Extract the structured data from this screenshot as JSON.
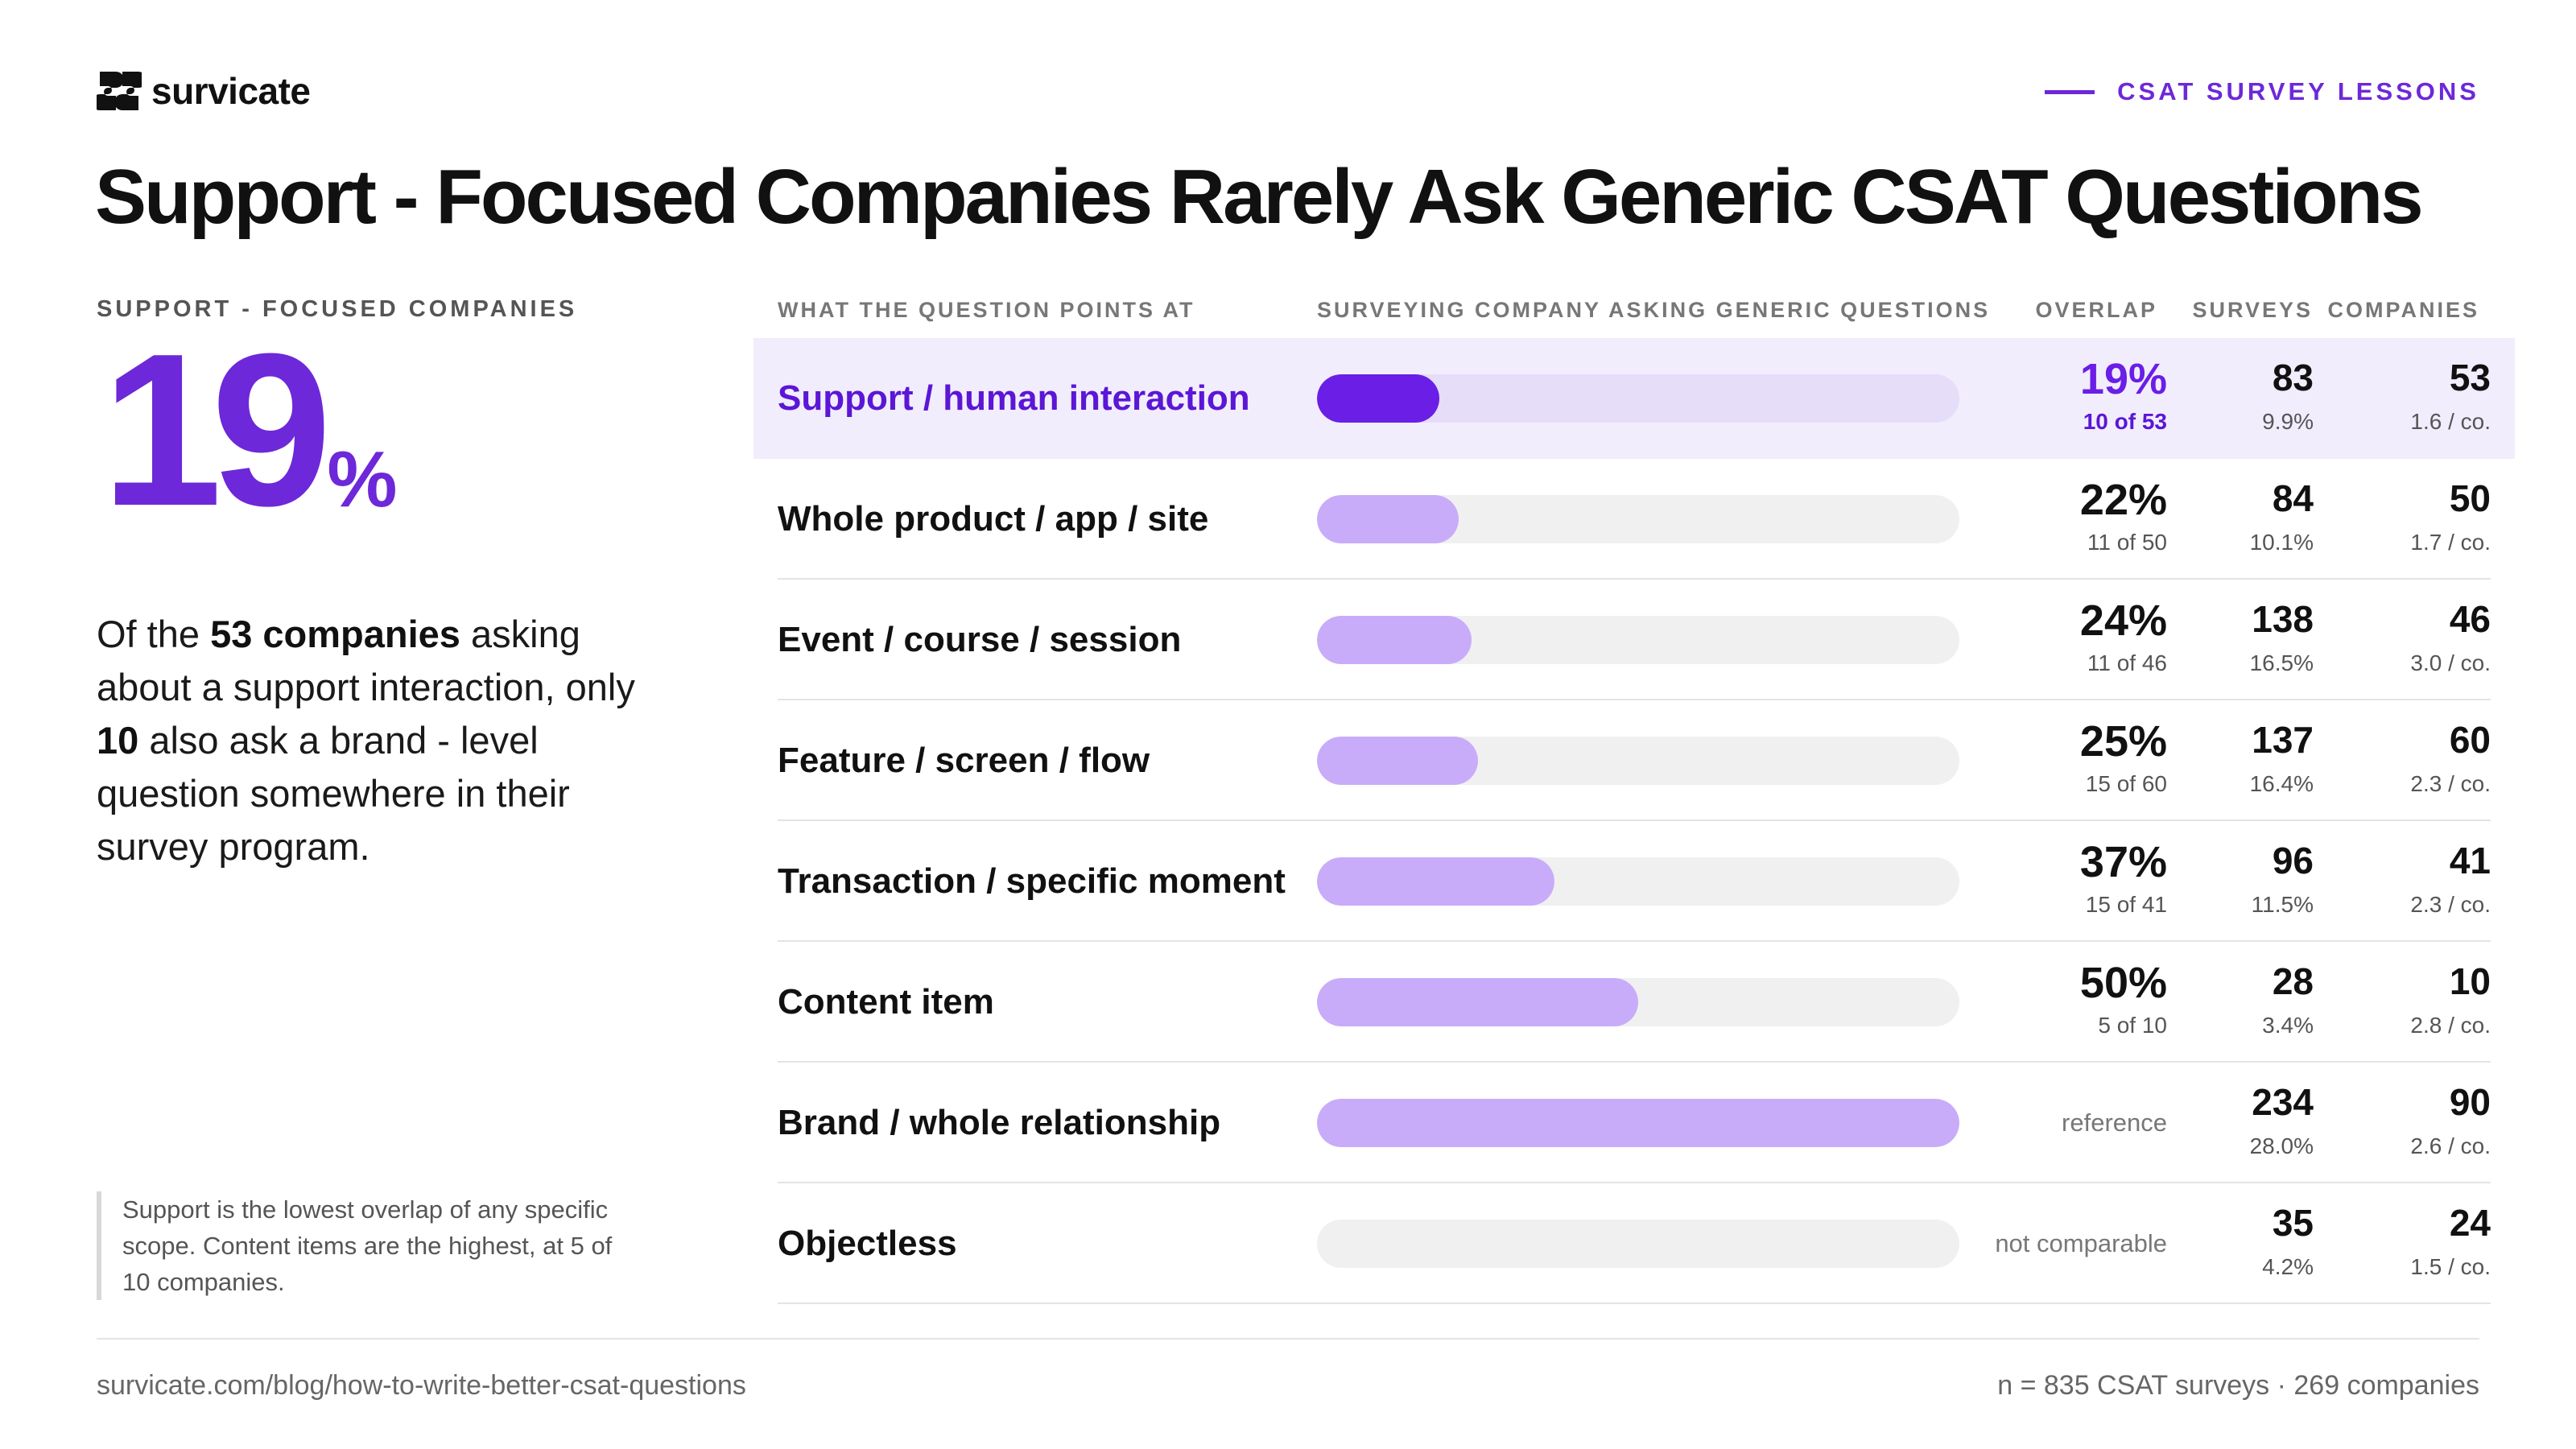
{
  "brand": {
    "name": "survicate",
    "logo_icon": "survicate-logo-icon",
    "accent": "#6d28d9"
  },
  "kicker": "CSAT SURVEY LESSONS",
  "title": "Support - Focused Companies Rarely Ask Generic CSAT Questions",
  "highlight": {
    "label": "SUPPORT - FOCUSED COMPANIES",
    "value": "19",
    "unit": "%",
    "desc": {
      "t1": "Of the ",
      "b1": "53 companies",
      "t2": " asking about a support interaction, only ",
      "b2": "10",
      "t3": " also ask a brand - level question somewhere in their survey program."
    },
    "note": "Support is the lowest overlap of any specific scope. Content items are the highest, at 5 of 10 companies."
  },
  "columns": {
    "scope": "WHAT THE QUESTION POINTS AT",
    "bar": "SURVEYING COMPANY ASKING GENERIC QUESTIONS",
    "overlap": "OVERLAP",
    "surveys": "SURVEYS",
    "companies": "COMPANIES"
  },
  "chart_data": {
    "type": "bar",
    "orientation": "horizontal",
    "value_range": [
      0,
      100
    ],
    "colors": {
      "highlight": "#6a1ee6",
      "bar": "#c8acf9",
      "track": "#f0f0f0"
    },
    "rows": [
      {
        "label": "Support / human interaction",
        "overlap": 19,
        "overlap_text": "19%",
        "overlap_sub": "10 of 53",
        "surveys": "83",
        "surveys_share": "9.9%",
        "companies": "53",
        "per_company": "1.6 / co.",
        "highlight": true
      },
      {
        "label": "Whole product / app / site",
        "overlap": 22,
        "overlap_text": "22%",
        "overlap_sub": "11 of 50",
        "surveys": "84",
        "surveys_share": "10.1%",
        "companies": "50",
        "per_company": "1.7 / co."
      },
      {
        "label": "Event / course / session",
        "overlap": 24,
        "overlap_text": "24%",
        "overlap_sub": "11 of 46",
        "surveys": "138",
        "surveys_share": "16.5%",
        "companies": "46",
        "per_company": "3.0 / co."
      },
      {
        "label": "Feature / screen / flow",
        "overlap": 25,
        "overlap_text": "25%",
        "overlap_sub": "15 of 60",
        "surveys": "137",
        "surveys_share": "16.4%",
        "companies": "60",
        "per_company": "2.3 / co."
      },
      {
        "label": "Transaction / specific moment",
        "overlap": 37,
        "overlap_text": "37%",
        "overlap_sub": "15 of 41",
        "surveys": "96",
        "surveys_share": "11.5%",
        "companies": "41",
        "per_company": "2.3 / co."
      },
      {
        "label": "Content item",
        "overlap": 50,
        "overlap_text": "50%",
        "overlap_sub": "5 of 10",
        "surveys": "28",
        "surveys_share": "3.4%",
        "companies": "10",
        "per_company": "2.8 / co."
      },
      {
        "label": "Brand / whole relationship",
        "overlap": 100,
        "overlap_note": "reference",
        "surveys": "234",
        "surveys_share": "28.0%",
        "companies": "90",
        "per_company": "2.6 / co."
      },
      {
        "label": "Objectless",
        "overlap": 0,
        "overlap_note": "not comparable",
        "surveys": "35",
        "surveys_share": "4.2%",
        "companies": "24",
        "per_company": "1.5 / co."
      }
    ]
  },
  "footer": {
    "source": "survicate.com/blog/how-to-write-better-csat-questions",
    "sample": "n = 835 CSAT surveys · 269 companies"
  }
}
